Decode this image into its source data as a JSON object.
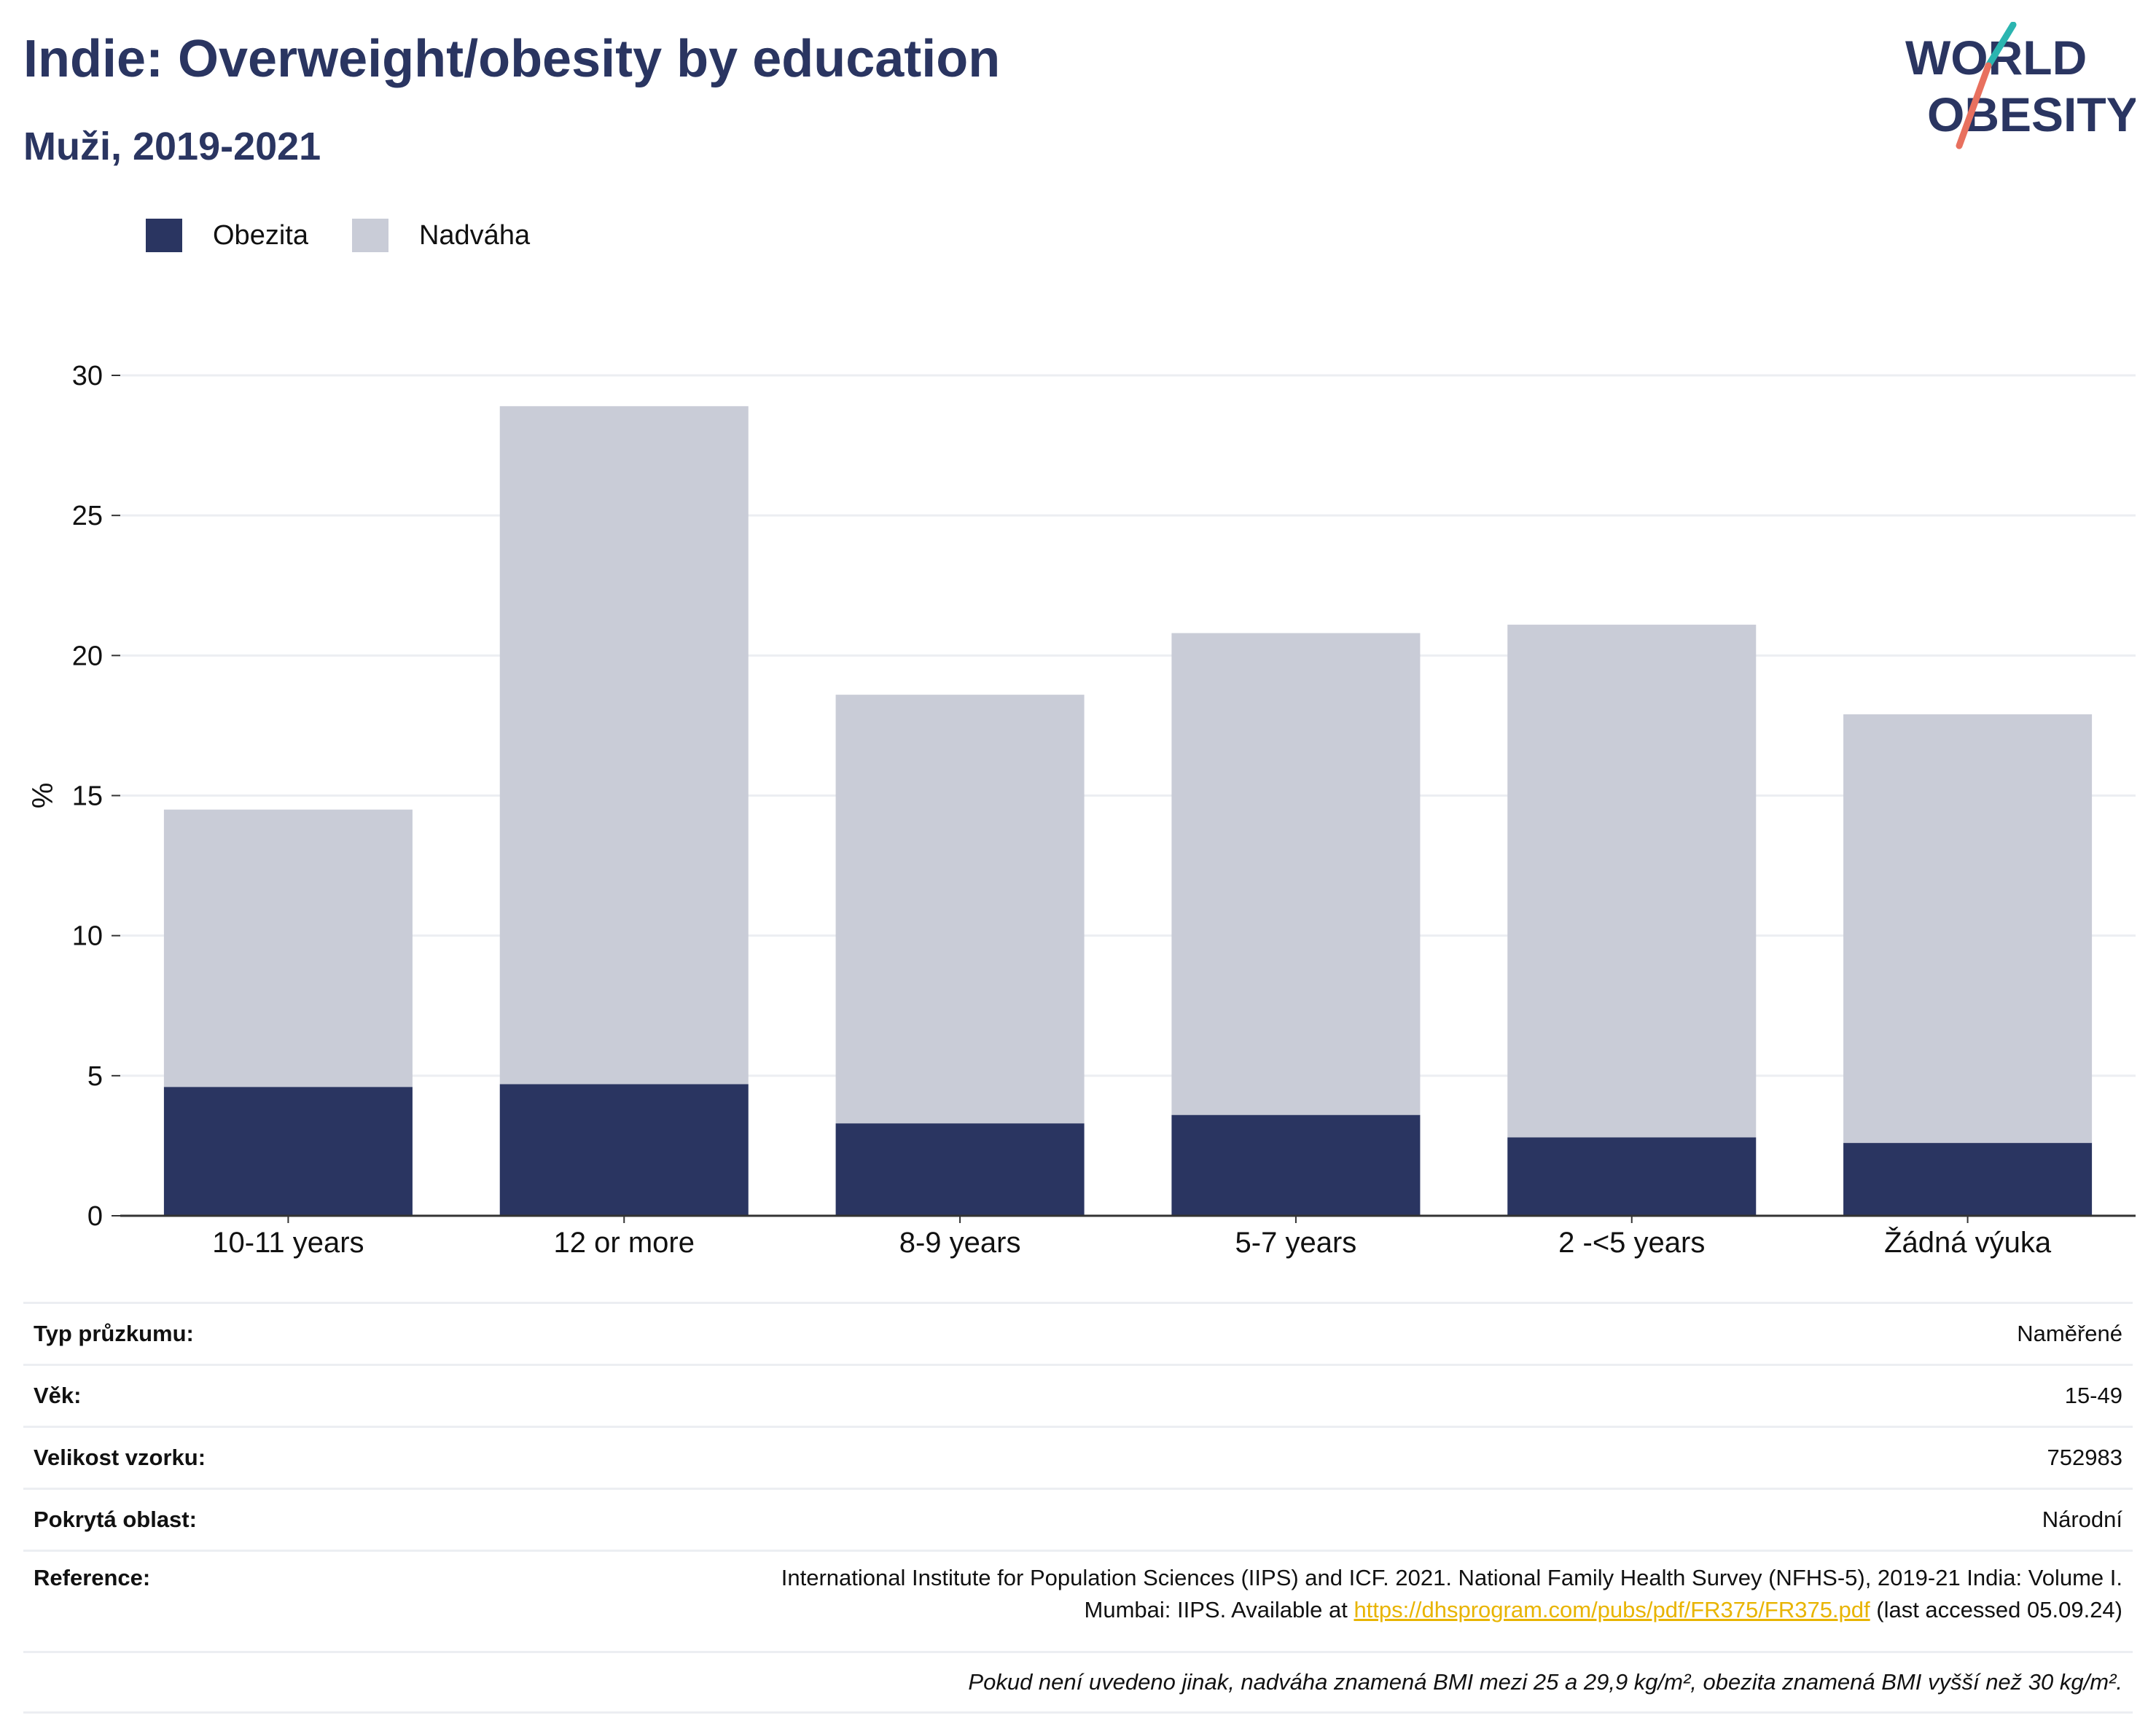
{
  "header": {
    "title": "Indie: Overweight/obesity by education",
    "subtitle": "Muži, 2019-2021"
  },
  "logo": {
    "line1": "WORLD",
    "line2": "OBESITY"
  },
  "legend": [
    {
      "label": "Obezita",
      "color": "#2a3561"
    },
    {
      "label": "Nadváha",
      "color": "#c9ccd7"
    }
  ],
  "chart_data": {
    "type": "bar",
    "stacked": true,
    "categories": [
      "10-11 years",
      "12 or more",
      "8-9 years",
      "5-7 years",
      "2 -<5 years",
      "Žádná výuka"
    ],
    "series": [
      {
        "name": "Obezita",
        "color": "#2a3561",
        "values": [
          4.6,
          4.7,
          3.3,
          3.6,
          2.8,
          2.6
        ]
      },
      {
        "name": "Nadváha",
        "color": "#c9ccd7",
        "values": [
          9.9,
          24.2,
          15.3,
          17.2,
          18.3,
          15.3
        ]
      }
    ],
    "ylabel": "%",
    "ylim": [
      0,
      30
    ],
    "yticks": [
      0,
      5,
      10,
      15,
      20,
      25,
      30
    ],
    "grid": true
  },
  "info": {
    "survey_type_label": "Typ průzkumu:",
    "survey_type_value": "Naměřené",
    "age_label": "Věk:",
    "age_value": "15-49",
    "sample_label": "Velikost vzorku:",
    "sample_value": "752983",
    "area_label": "Pokrytá oblast:",
    "area_value": "Národní",
    "reference_label": "Reference:",
    "reference_line1": "International Institute for Population Sciences (IIPS) and ICF. 2021. National Family Health Survey (NFHS-5), 2019-21 India: Volume I.",
    "reference_line2_pre": "Mumbai: IIPS. Available at ",
    "reference_link": "https://dhsprogram.com/pubs/pdf/FR375/FR375.pdf",
    "reference_line2_post": " (last accessed 05.09.24)",
    "note": "Pokud není uvedeno jinak, nadváha znamená BMI mezi 25 a 29,9 kg/m², obezita znamená BMI vyšší než 30 kg/m²."
  }
}
